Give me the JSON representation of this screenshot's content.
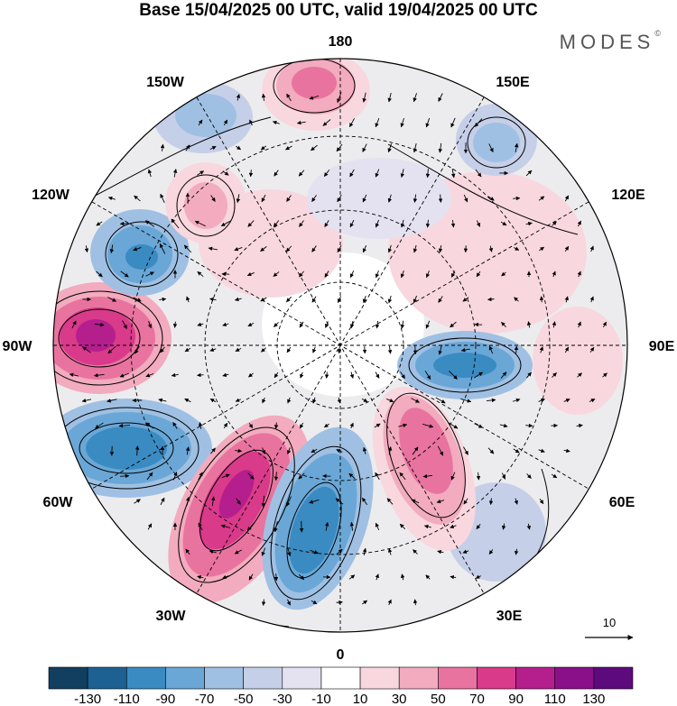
{
  "title": "Base 15/04/2025 00 UTC, valid 19/04/2025 00 UTC",
  "brand": "MODES",
  "brand_mark": "©",
  "longitude_labels": {
    "top": "180",
    "top_left": "150W",
    "top_right": "150E",
    "upper_left": "120W",
    "upper_right": "120E",
    "left": "90W",
    "right": "90E",
    "lower_left": "60W",
    "lower_right": "60E",
    "bottom_left": "30W",
    "bottom_right": "30E",
    "bottom": "0"
  },
  "vector_reference_label": "10",
  "colorbar": {
    "colors": [
      "#123e60",
      "#1d6193",
      "#3a8bc2",
      "#6aa7d6",
      "#9fc0e3",
      "#c6cfe8",
      "#e4e2f0",
      "#ffffff",
      "#f8d7df",
      "#f2abbf",
      "#e9739f",
      "#d93a8a",
      "#b51e8d",
      "#8a108a",
      "#5d0a7c"
    ],
    "labels": [
      "-130",
      "-110",
      "-90",
      "-70",
      "-50",
      "-30",
      "-10",
      "10",
      "30",
      "50",
      "70",
      "90",
      "110",
      "130"
    ]
  },
  "anomaly_features": [
    {
      "sign": "positive",
      "level": "strong",
      "near": "90W"
    },
    {
      "sign": "positive",
      "level": "strong",
      "near": "30W-60W"
    },
    {
      "sign": "positive",
      "level": "moderate",
      "near": "0-30E"
    },
    {
      "sign": "positive",
      "level": "moderate",
      "near": "180"
    },
    {
      "sign": "negative",
      "level": "strong",
      "near": "60W"
    },
    {
      "sign": "negative",
      "level": "strong",
      "near": "0-30W"
    },
    {
      "sign": "negative",
      "level": "moderate",
      "near": "90E"
    },
    {
      "sign": "negative",
      "level": "moderate",
      "near": "120W"
    },
    {
      "sign": "negative",
      "level": "moderate",
      "near": "150E"
    },
    {
      "sign": "negative",
      "level": "weak",
      "near": "150W"
    }
  ]
}
